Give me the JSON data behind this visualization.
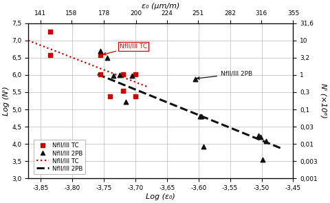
{
  "xlim": [
    -3.87,
    -3.45
  ],
  "ylim": [
    3.0,
    7.5
  ],
  "xticks": [
    -3.85,
    -3.8,
    -3.75,
    -3.7,
    -3.65,
    -3.6,
    -3.55,
    -3.5,
    -3.45
  ],
  "yticks": [
    3.0,
    3.5,
    4.0,
    4.5,
    5.0,
    5.5,
    6.0,
    6.5,
    7.0,
    7.5
  ],
  "top_ticks_vals": [
    141,
    158,
    178,
    200,
    224,
    251,
    282,
    316,
    355
  ],
  "right_yticks_labels": [
    "0,001",
    "0,003",
    "0,01",
    "0,03",
    "0,1",
    "0,3",
    "1",
    "3,2",
    "10",
    "31,6"
  ],
  "right_ytick_vals": [
    3.0,
    3.5,
    4.0,
    4.5,
    5.0,
    5.5,
    6.0,
    6.5,
    7.0,
    7.5
  ],
  "xlabel": "Log (ε₀)",
  "ylabel": "Log (Nⁱ)",
  "top_xlabel": "ε₀ (μm/m)",
  "right_ylabel": "Nⁱ (×10⁶)",
  "tc_scatter_x": [
    -3.835,
    -3.835,
    -3.755,
    -3.755,
    -3.74,
    -3.72,
    -3.72,
    -3.7,
    -3.7
  ],
  "tc_scatter_y": [
    7.25,
    6.58,
    6.57,
    6.02,
    5.37,
    6.01,
    5.54,
    6.01,
    5.38
  ],
  "pb_scatter_x": [
    -3.755,
    -3.745,
    -3.735,
    -3.725,
    -3.715,
    -3.705,
    -3.605,
    -3.598,
    -3.595,
    -3.592,
    -3.505,
    -3.502,
    -3.498,
    -3.493
  ],
  "pb_scatter_y": [
    6.7,
    6.5,
    5.98,
    6.0,
    5.22,
    5.97,
    5.88,
    4.8,
    4.8,
    3.92,
    4.25,
    4.2,
    3.55,
    4.08
  ],
  "tc_line_x": [
    -3.87,
    -3.68
  ],
  "tc_line_y": [
    7.0,
    5.65
  ],
  "pb_line_x": [
    -3.76,
    -3.47
  ],
  "pb_line_y": [
    6.02,
    3.88
  ],
  "tc_color": "#cc0000",
  "pb_color": "#111111",
  "bg_color": "#ffffff",
  "grid_color": "#bbbbbb"
}
